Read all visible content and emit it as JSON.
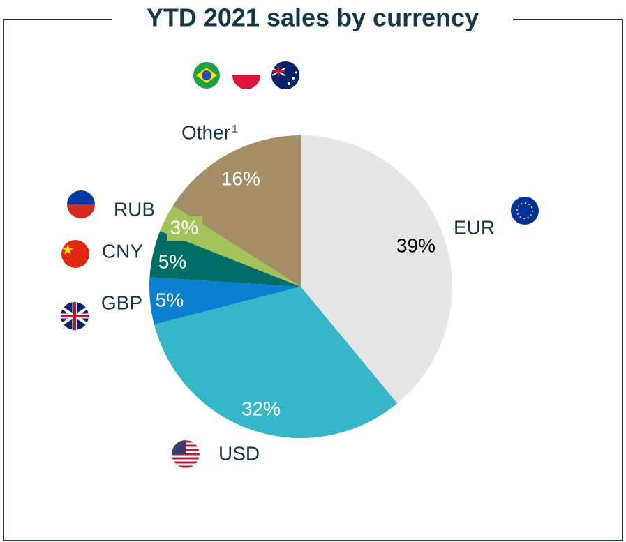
{
  "chart_data": {
    "type": "pie",
    "title": "YTD 2021 sales by currency",
    "categories": [
      "EUR",
      "USD",
      "GBP",
      "CNY",
      "RUB",
      "Other"
    ],
    "category_notes": [
      null,
      null,
      null,
      null,
      null,
      "1"
    ],
    "values": [
      39,
      32,
      5,
      5,
      3,
      16
    ],
    "value_labels": [
      "39%",
      "32%",
      "5%",
      "5%",
      "3%",
      "16%"
    ],
    "colors": [
      "#e6e6e6",
      "#35b6c9",
      "#0a7fd0",
      "#006e66",
      "#a2c35a",
      "#a58d66"
    ],
    "label_colors": [
      "#000000",
      "#ffffff",
      "#ffffff",
      "#ffffff",
      "#ffffff",
      "#ffffff"
    ]
  }
}
